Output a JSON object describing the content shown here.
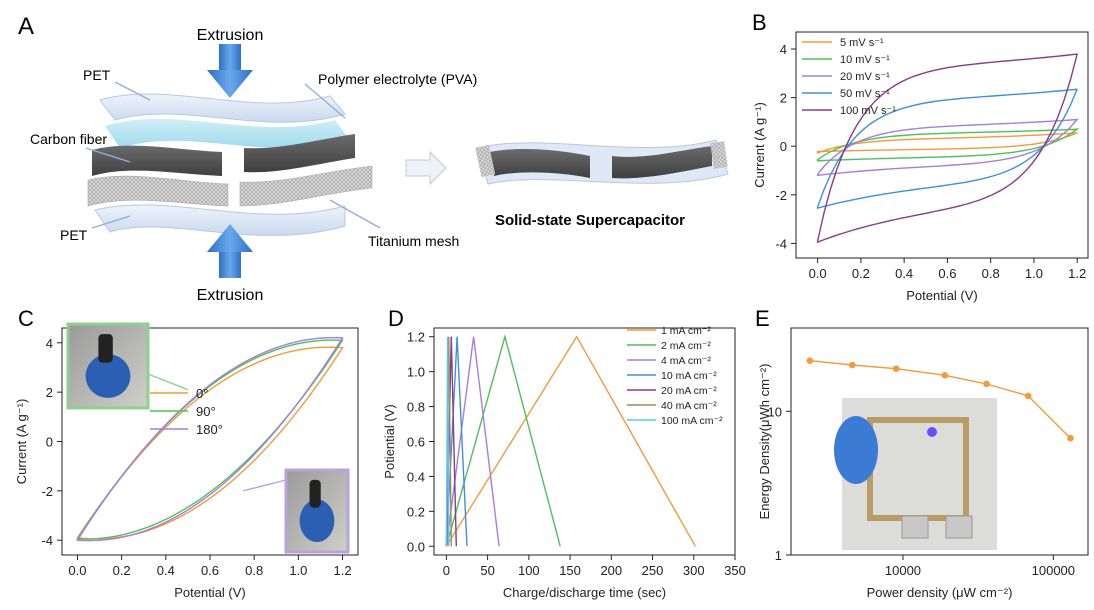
{
  "panels": {
    "A": {
      "letter": "A",
      "extrusion_top": "Extrusion",
      "extrusion_bottom": "Extrusion",
      "label_pet_top": "PET",
      "label_pva": "Polymer electrolyte (PVA)",
      "label_carbon": "Carbon fiber",
      "label_pet_bottom": "PET",
      "label_titanium": "Titanium mesh",
      "device_label": "Solid-state Supercapacitor"
    },
    "B": {
      "letter": "B"
    },
    "C": {
      "letter": "C"
    },
    "D": {
      "letter": "D"
    },
    "E": {
      "letter": "E"
    }
  },
  "colors": {
    "orange": "#f39a3a",
    "green": "#4fbf5e",
    "purple_light": "#a77fd8",
    "blue": "#3f8fe0",
    "purple_dark": "#8a3a8a",
    "brown": "#a08a5e",
    "cyan": "#5fc6ea",
    "arrow_blue": "#3b82d6"
  },
  "chart_data": [
    {
      "panel": "B",
      "type": "line",
      "xlabel": "Potential (V)",
      "ylabel": "Current (A g⁻¹)",
      "xlim": [
        -0.1,
        1.25
      ],
      "ylim": [
        -4.6,
        4.7
      ],
      "xticks": [
        0.0,
        0.2,
        0.4,
        0.6,
        0.8,
        1.0,
        1.2
      ],
      "xtick_labels": [
        "0.0",
        "0.2",
        "0.4",
        "0.6",
        "0.8",
        "1.0",
        "1.2"
      ],
      "yticks": [
        -4,
        -2,
        0,
        2,
        4
      ],
      "ytick_labels": [
        "-4",
        "-2",
        "0",
        "2",
        "4"
      ],
      "legend_position": "top-left",
      "series": [
        {
          "name": "5 mV s⁻¹",
          "color": "#f39a3a",
          "cv": {
            "iup0": -0.28,
            "platU": 0.32,
            "iupEnd": 0.55,
            "idn": -0.22,
            "platD": -0.12
          }
        },
        {
          "name": "10 mV s⁻¹",
          "color": "#4fbf5e",
          "cv": {
            "iup0": -0.55,
            "platU": 0.55,
            "iupEnd": 0.7,
            "idn": -0.6,
            "platD": -0.45
          }
        },
        {
          "name": "20 mV s⁻¹",
          "color": "#a77fd8",
          "cv": {
            "iup0": -1.15,
            "platU": 0.85,
            "iupEnd": 1.1,
            "idn": -1.2,
            "platD": -0.8
          }
        },
        {
          "name": "50 mV s⁻¹",
          "color": "#3f8fe0",
          "cv": {
            "iup0": -2.5,
            "platU": 2.0,
            "iupEnd": 2.35,
            "idn": -2.55,
            "platD": -1.6
          }
        },
        {
          "name": "100 mV s⁻¹",
          "color": "#8a3a8a",
          "cv": {
            "iup0": -3.9,
            "platU": 3.4,
            "iupEnd": 3.8,
            "idn": -3.95,
            "platD": -2.6
          }
        }
      ]
    },
    {
      "panel": "C",
      "type": "line",
      "xlabel": "Potential (V)",
      "ylabel": "Current (A g⁻¹)",
      "xlim": [
        -0.07,
        1.27
      ],
      "ylim": [
        -4.6,
        4.6
      ],
      "xticks": [
        0.0,
        0.2,
        0.4,
        0.6,
        0.8,
        1.0,
        1.2
      ],
      "xtick_labels": [
        "0.0",
        "0.2",
        "0.4",
        "0.6",
        "0.8",
        "1.0",
        "1.2"
      ],
      "yticks": [
        -4,
        -2,
        0,
        2,
        4
      ],
      "ytick_labels": [
        "-4",
        "-2",
        "0",
        "2",
        "4"
      ],
      "legend_position": "center",
      "series": [
        {
          "name": "0°",
          "color": "#f39a3a",
          "cv": {
            "start": -3.9,
            "end": 3.8,
            "topMid": 2.1,
            "botMid": -2.3
          }
        },
        {
          "name": "90°",
          "color": "#4fbf5e",
          "cv": {
            "start": -3.95,
            "end": 4.1,
            "topMid": 2.25,
            "botMid": -2.05
          }
        },
        {
          "name": "180°",
          "color": "#a77fd8",
          "cv": {
            "start": -4.0,
            "end": 4.2,
            "topMid": 2.3,
            "botMid": -2.15
          }
        }
      ]
    },
    {
      "panel": "D",
      "type": "line",
      "xlabel": "Charge/discharge time (sec)",
      "ylabel": "Potiential (V)",
      "xlim": [
        -15,
        350
      ],
      "ylim": [
        -0.05,
        1.25
      ],
      "xticks": [
        0,
        50,
        100,
        150,
        200,
        250,
        300,
        350
      ],
      "xtick_labels": [
        "0",
        "50",
        "100",
        "150",
        "200",
        "250",
        "300",
        "350"
      ],
      "yticks": [
        0.0,
        0.2,
        0.4,
        0.6,
        0.8,
        1.0,
        1.2
      ],
      "ytick_labels": [
        "0.0",
        "0.2",
        "0.4",
        "0.6",
        "0.8",
        "1.0",
        "1.2"
      ],
      "legend_position": "top-right",
      "series": [
        {
          "name": "1 mA cm⁻²",
          "color": "#f39a3a",
          "x": [
            0,
            158,
            302
          ],
          "y": [
            0,
            1.2,
            0
          ]
        },
        {
          "name": "2 mA cm⁻²",
          "color": "#4fbf5e",
          "x": [
            0,
            71,
            138
          ],
          "y": [
            0,
            1.2,
            0
          ]
        },
        {
          "name": "4 mA cm⁻²",
          "color": "#a77fd8",
          "x": [
            0,
            33,
            64
          ],
          "y": [
            0,
            1.2,
            0
          ]
        },
        {
          "name": "10 mA cm⁻²",
          "color": "#3f8fe0",
          "x": [
            0,
            13,
            25
          ],
          "y": [
            0,
            1.2,
            0
          ]
        },
        {
          "name": "20 mA cm⁻²",
          "color": "#8a3a8a",
          "x": [
            0,
            6,
            12
          ],
          "y": [
            0,
            1.2,
            0
          ]
        },
        {
          "name": "40 mA cm⁻²",
          "color": "#a08a5e",
          "x": [
            0,
            3,
            6
          ],
          "y": [
            0,
            1.2,
            0
          ]
        },
        {
          "name": "100 mA cm⁻²",
          "color": "#5fc6ea",
          "x": [
            0,
            1.5,
            3
          ],
          "y": [
            0,
            1.2,
            0
          ]
        }
      ]
    },
    {
      "panel": "E",
      "type": "line",
      "xlabel": "Power density (μW cm⁻²)",
      "ylabel": "Energy Density(μWh cm⁻²)",
      "xscale": "log",
      "yscale": "log",
      "xlim": [
        1800,
        170000
      ],
      "ylim": [
        1,
        38
      ],
      "xticks": [
        10000,
        100000
      ],
      "xtick_labels": [
        "10000",
        "100000"
      ],
      "yticks": [
        1,
        10
      ],
      "ytick_labels": [
        "1",
        "10"
      ],
      "series": [
        {
          "name": "",
          "color": "#f39a3a",
          "x": [
            2400,
            4600,
            9000,
            19000,
            36000,
            68000,
            130000
          ],
          "y": [
            22.5,
            21.0,
            19.8,
            17.8,
            15.5,
            12.8,
            6.5
          ]
        }
      ]
    }
  ]
}
